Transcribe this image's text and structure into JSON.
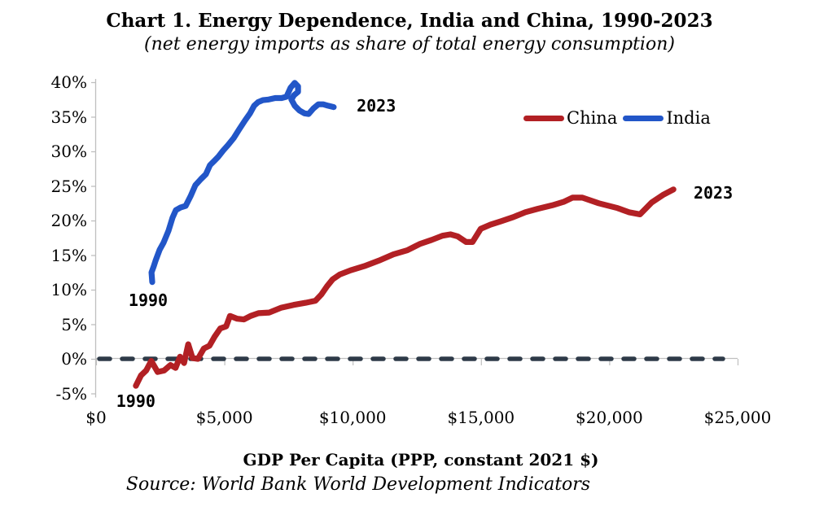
{
  "title": "Chart 1. Energy Dependence, India and China, 1990-2023",
  "subtitle": "(net energy imports as share of total energy consumption)",
  "source": "Source: World Bank World Development Indicators",
  "legend": {
    "items": [
      {
        "label": "China",
        "color": "#b22024"
      },
      {
        "label": "India",
        "color": "#2256c8"
      }
    ]
  },
  "x_axis": {
    "title": "GDP Per Capita (PPP, constant 2021 $)",
    "ticks": [
      {
        "label": "$0",
        "value": 0
      },
      {
        "label": "$5,000",
        "value": 5000
      },
      {
        "label": "$10,000",
        "value": 10000
      },
      {
        "label": "$15,000",
        "value": 15000
      },
      {
        "label": "$20,000",
        "value": 20000
      },
      {
        "label": "$25,000",
        "value": 25000
      }
    ]
  },
  "y_axis": {
    "ticks": [
      {
        "label": "40%",
        "value": 40
      },
      {
        "label": "35%",
        "value": 35
      },
      {
        "label": "30%",
        "value": 30
      },
      {
        "label": "25%",
        "value": 25
      },
      {
        "label": "20%",
        "value": 20
      },
      {
        "label": "15%",
        "value": 15
      },
      {
        "label": "10%",
        "value": 10
      },
      {
        "label": "5%",
        "value": 5
      },
      {
        "label": "0%",
        "value": 0
      },
      {
        "label": "-5%",
        "value": -5
      }
    ]
  },
  "annotations": [
    {
      "label": "1990",
      "series": "china",
      "gdp": 1550,
      "pct": -6.1
    },
    {
      "label": "1990",
      "series": "india",
      "gdp": 2030,
      "pct": 8.5
    },
    {
      "label": "2023",
      "series": "india",
      "gdp": 10920,
      "pct": 36.6
    },
    {
      "label": "2023",
      "series": "china",
      "gdp": 24050,
      "pct": 24.0
    }
  ],
  "colors": {
    "zero_line": "#2e3a48",
    "axis": "#bfbfbf",
    "text": "#000000"
  },
  "chart_data": {
    "type": "line",
    "title": "Chart 1. Energy Dependence, India and China, 1990-2023",
    "subtitle": "(net energy imports as share of total energy consumption)",
    "xlabel": "GDP Per Capita (PPP, constant 2021 $)",
    "ylabel": "Net energy imports as share of total energy consumption (%)",
    "xlim": [
      0,
      25000
    ],
    "ylim": [
      -5,
      40
    ],
    "grid": false,
    "zero_line_dashed": true,
    "legend_position": "top-right",
    "span": "1990-2023",
    "series": [
      {
        "name": "China",
        "color": "#b22024",
        "start_year": 1990,
        "end_year": 2023,
        "points": [
          [
            1550,
            -3.9
          ],
          [
            1750,
            -2.4
          ],
          [
            1950,
            -1.7
          ],
          [
            2150,
            -0.3
          ],
          [
            2400,
            -1.9
          ],
          [
            2650,
            -1.7
          ],
          [
            2900,
            -0.9
          ],
          [
            3100,
            -1.3
          ],
          [
            3270,
            0.3
          ],
          [
            3430,
            -0.6
          ],
          [
            3590,
            2.1
          ],
          [
            3760,
            0.1
          ],
          [
            3970,
            0.0
          ],
          [
            4200,
            1.5
          ],
          [
            4420,
            1.9
          ],
          [
            4620,
            3.2
          ],
          [
            4840,
            4.4
          ],
          [
            5070,
            4.7
          ],
          [
            5220,
            6.2
          ],
          [
            5500,
            5.8
          ],
          [
            5760,
            5.7
          ],
          [
            6020,
            6.2
          ],
          [
            6330,
            6.6
          ],
          [
            6750,
            6.7
          ],
          [
            7220,
            7.4
          ],
          [
            7700,
            7.8
          ],
          [
            8170,
            8.1
          ],
          [
            8550,
            8.4
          ],
          [
            8780,
            9.3
          ],
          [
            9000,
            10.5
          ],
          [
            9220,
            11.5
          ],
          [
            9500,
            12.2
          ],
          [
            9920,
            12.8
          ],
          [
            10450,
            13.4
          ],
          [
            11020,
            14.2
          ],
          [
            11590,
            15.1
          ],
          [
            12130,
            15.7
          ],
          [
            12610,
            16.6
          ],
          [
            13080,
            17.2
          ],
          [
            13500,
            17.8
          ],
          [
            13810,
            18.0
          ],
          [
            14100,
            17.7
          ],
          [
            14420,
            16.9
          ],
          [
            14670,
            16.9
          ],
          [
            14990,
            18.8
          ],
          [
            15370,
            19.4
          ],
          [
            15780,
            19.9
          ],
          [
            16260,
            20.5
          ],
          [
            16730,
            21.2
          ],
          [
            17210,
            21.7
          ],
          [
            17780,
            22.2
          ],
          [
            18220,
            22.7
          ],
          [
            18570,
            23.3
          ],
          [
            18950,
            23.3
          ],
          [
            19590,
            22.5
          ],
          [
            20320,
            21.8
          ],
          [
            20760,
            21.2
          ],
          [
            21200,
            20.9
          ],
          [
            21650,
            22.6
          ],
          [
            22090,
            23.7
          ],
          [
            22500,
            24.5
          ]
        ]
      },
      {
        "name": "India",
        "color": "#2256c8",
        "start_year": 1990,
        "end_year": 2023,
        "points": [
          [
            2190,
            11.1
          ],
          [
            2160,
            12.5
          ],
          [
            2250,
            13.4
          ],
          [
            2320,
            14.2
          ],
          [
            2480,
            15.8
          ],
          [
            2630,
            16.8
          ],
          [
            2820,
            18.5
          ],
          [
            2980,
            20.4
          ],
          [
            3110,
            21.5
          ],
          [
            3300,
            21.9
          ],
          [
            3490,
            22.1
          ],
          [
            3680,
            23.5
          ],
          [
            3870,
            25.1
          ],
          [
            4090,
            26.0
          ],
          [
            4280,
            26.7
          ],
          [
            4440,
            28.0
          ],
          [
            4600,
            28.6
          ],
          [
            4760,
            29.2
          ],
          [
            4950,
            30.1
          ],
          [
            5140,
            30.9
          ],
          [
            5360,
            31.9
          ],
          [
            5580,
            33.2
          ],
          [
            5810,
            34.5
          ],
          [
            6000,
            35.5
          ],
          [
            6160,
            36.6
          ],
          [
            6310,
            37.1
          ],
          [
            6500,
            37.4
          ],
          [
            6730,
            37.5
          ],
          [
            6980,
            37.7
          ],
          [
            7230,
            37.7
          ],
          [
            7420,
            37.9
          ],
          [
            7580,
            39.2
          ],
          [
            7740,
            39.9
          ],
          [
            7870,
            39.4
          ],
          [
            7870,
            38.6
          ],
          [
            7710,
            38.1
          ],
          [
            7610,
            37.5
          ],
          [
            7740,
            36.6
          ],
          [
            7930,
            35.9
          ],
          [
            8120,
            35.5
          ],
          [
            8280,
            35.4
          ],
          [
            8470,
            36.2
          ],
          [
            8660,
            36.8
          ],
          [
            8850,
            36.8
          ],
          [
            9040,
            36.6
          ],
          [
            9260,
            36.4
          ]
        ]
      }
    ]
  }
}
